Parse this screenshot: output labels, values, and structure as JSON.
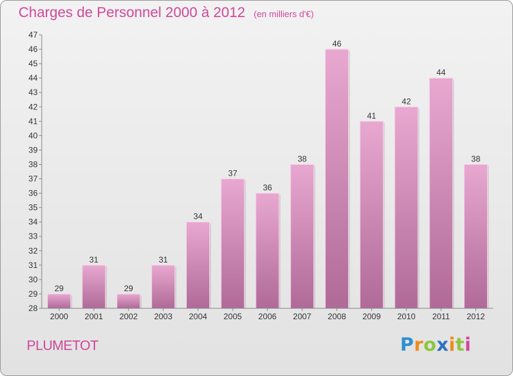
{
  "title": "Charges de Personnel 2000 à 2012",
  "subtitle": "(en milliers d'€)",
  "commune": "PLUMETOT",
  "brand": [
    "P",
    "r",
    "o",
    "x",
    "i",
    "t",
    "i"
  ],
  "colors": {
    "text_accent": "#d0479a",
    "bar_top": "#e8a8d0",
    "bar_bottom": "#b06a98"
  },
  "chart_data": {
    "type": "bar",
    "title": "Charges de Personnel 2000 à 2012",
    "subtitle": "(en milliers d'€)",
    "xlabel": "",
    "ylabel": "",
    "categories": [
      "2000",
      "2001",
      "2002",
      "2003",
      "2004",
      "2005",
      "2006",
      "2007",
      "2008",
      "2009",
      "2010",
      "2011",
      "2012"
    ],
    "values": [
      29,
      31,
      29,
      31,
      34,
      37,
      36,
      38,
      46,
      41,
      42,
      44,
      38
    ],
    "ylim": [
      28,
      47
    ],
    "yticks": [
      28,
      29,
      30,
      31,
      32,
      33,
      34,
      35,
      36,
      37,
      38,
      39,
      40,
      41,
      42,
      43,
      44,
      45,
      46,
      47
    ],
    "grid": false,
    "legend": "none"
  }
}
